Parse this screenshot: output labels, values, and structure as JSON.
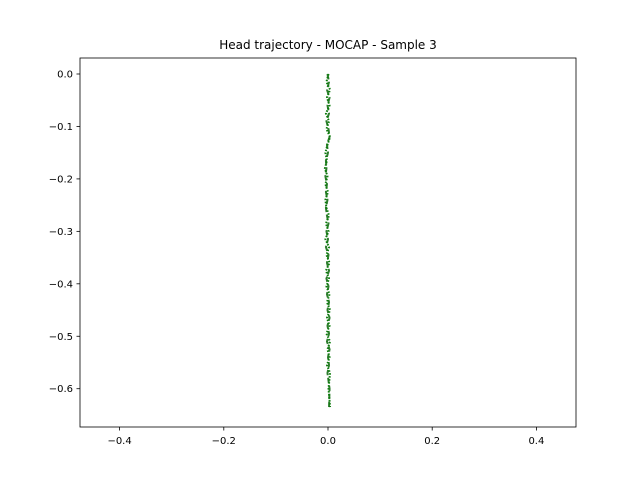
{
  "chart_data": {
    "type": "line",
    "title": "Head trajectory - MOCAP - Sample 3",
    "xlabel": "",
    "ylabel": "",
    "xlim": [
      -0.476,
      0.476
    ],
    "ylim": [
      -0.673,
      0.0305
    ],
    "xticks": [
      -0.4,
      -0.2,
      0.0,
      0.2,
      0.4
    ],
    "xtick_labels": [
      "−0.4",
      "−0.2",
      "0.0",
      "0.2",
      "0.4"
    ],
    "yticks": [
      0.0,
      -0.1,
      -0.2,
      -0.3,
      -0.4,
      -0.5,
      -0.6
    ],
    "ytick_labels": [
      "0.0",
      "−0.1",
      "−0.2",
      "−0.3",
      "−0.4",
      "−0.5",
      "−0.6"
    ],
    "grid": false,
    "legend": false,
    "series": [
      {
        "color": "#2e7d2e",
        "linestyle": "dashed",
        "x": [
          -0.001,
          0.002,
          -0.002,
          0.003,
          -0.001,
          0.002,
          -0.003,
          0.001,
          0.003,
          -0.002,
          0.0,
          -0.004,
          -0.003,
          -0.005,
          -0.002,
          -0.004,
          -0.001,
          -0.004,
          -0.002,
          0.001,
          -0.003,
          0.0,
          -0.004,
          0.001,
          -0.002,
          0.002,
          -0.003,
          0.001,
          -0.002,
          0.002,
          -0.001,
          0.003,
          -0.001,
          0.002,
          -0.002,
          0.003,
          0.0,
          0.002,
          -0.001,
          0.003,
          0.002
        ],
        "y": [
          0.0,
          -0.015,
          -0.03,
          -0.045,
          -0.06,
          -0.075,
          -0.09,
          -0.105,
          -0.12,
          -0.135,
          -0.15,
          -0.165,
          -0.18,
          -0.195,
          -0.21,
          -0.225,
          -0.24,
          -0.255,
          -0.27,
          -0.285,
          -0.3,
          -0.315,
          -0.33,
          -0.345,
          -0.36,
          -0.375,
          -0.39,
          -0.405,
          -0.42,
          -0.435,
          -0.45,
          -0.465,
          -0.48,
          -0.495,
          -0.51,
          -0.525,
          -0.54,
          -0.555,
          -0.57,
          -0.6,
          -0.635
        ]
      },
      {
        "color": "#0a7a0a",
        "linestyle": "dotted",
        "x": [
          0.001,
          -0.003,
          0.004,
          -0.002,
          0.003,
          -0.004,
          0.002,
          -0.003,
          0.004,
          -0.001,
          -0.005,
          -0.002,
          -0.006,
          -0.001,
          -0.005,
          0.0,
          -0.005,
          -0.003,
          0.002,
          -0.004,
          0.001,
          -0.005,
          0.002,
          -0.003,
          0.003,
          -0.004,
          0.002,
          -0.003,
          0.003,
          -0.002,
          0.004,
          -0.002,
          0.003,
          -0.003,
          0.004,
          -0.001,
          0.003,
          -0.002,
          0.004,
          0.001,
          0.004
        ],
        "y": [
          0.0,
          -0.015,
          -0.03,
          -0.045,
          -0.06,
          -0.075,
          -0.09,
          -0.105,
          -0.12,
          -0.135,
          -0.15,
          -0.165,
          -0.18,
          -0.195,
          -0.21,
          -0.225,
          -0.24,
          -0.255,
          -0.27,
          -0.285,
          -0.3,
          -0.315,
          -0.33,
          -0.345,
          -0.36,
          -0.375,
          -0.39,
          -0.405,
          -0.42,
          -0.435,
          -0.45,
          -0.465,
          -0.48,
          -0.495,
          -0.51,
          -0.525,
          -0.54,
          -0.555,
          -0.57,
          -0.6,
          -0.635
        ]
      }
    ]
  }
}
